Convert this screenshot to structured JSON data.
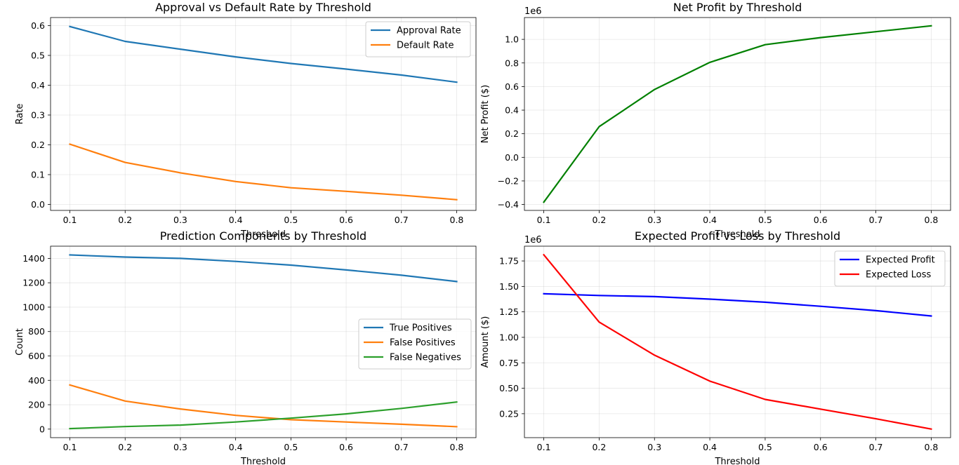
{
  "chart_data": [
    {
      "type": "line",
      "title": "Approval vs Default Rate by Threshold",
      "xlabel": "Threshold",
      "ylabel": "Rate",
      "x": [
        0.1,
        0.2,
        0.3,
        0.4,
        0.5,
        0.6,
        0.7,
        0.8
      ],
      "x_ticks": [
        "0.1",
        "0.2",
        "0.3",
        "0.4",
        "0.5",
        "0.6",
        "0.7",
        "0.8"
      ],
      "y_ticks": [
        "0.0",
        "0.1",
        "0.2",
        "0.3",
        "0.4",
        "0.5",
        "0.6"
      ],
      "xlim": [
        0.065,
        0.835
      ],
      "ylim": [
        -0.02,
        0.627
      ],
      "grid": true,
      "legend": "upper right",
      "series": [
        {
          "name": "Approval Rate",
          "color": "#1f77b4",
          "values": [
            0.597,
            0.547,
            0.521,
            0.495,
            0.473,
            0.454,
            0.434,
            0.41
          ]
        },
        {
          "name": "Default Rate",
          "color": "#ff7f0e",
          "values": [
            0.202,
            0.141,
            0.106,
            0.077,
            0.056,
            0.044,
            0.031,
            0.016
          ]
        }
      ]
    },
    {
      "type": "line",
      "title": "Net Profit by Threshold",
      "xlabel": "Threshold",
      "ylabel": "Net Profit ($)",
      "offset_label": "1e6",
      "x": [
        0.1,
        0.2,
        0.3,
        0.4,
        0.5,
        0.6,
        0.7,
        0.8
      ],
      "x_ticks": [
        "0.1",
        "0.2",
        "0.3",
        "0.4",
        "0.5",
        "0.6",
        "0.7",
        "0.8"
      ],
      "y_ticks": [
        "−0.4",
        "−0.2",
        "0.0",
        "0.2",
        "0.4",
        "0.6",
        "0.8",
        "1.0"
      ],
      "xlim": [
        0.065,
        0.835
      ],
      "ylim": [
        -0.45,
        1.185
      ],
      "grid": true,
      "legend": "none",
      "series": [
        {
          "color": "#008000",
          "values": [
            -0.38,
            0.26,
            0.575,
            0.805,
            0.955,
            1.015,
            1.065,
            1.115
          ]
        }
      ]
    },
    {
      "type": "line",
      "title": "Prediction Components by Threshold",
      "xlabel": "Threshold",
      "ylabel": "Count",
      "x": [
        0.1,
        0.2,
        0.3,
        0.4,
        0.5,
        0.6,
        0.7,
        0.8
      ],
      "x_ticks": [
        "0.1",
        "0.2",
        "0.3",
        "0.4",
        "0.5",
        "0.6",
        "0.7",
        "0.8"
      ],
      "y_ticks": [
        "0",
        "200",
        "400",
        "600",
        "800",
        "1000",
        "1200",
        "1400"
      ],
      "xlim": [
        0.065,
        0.835
      ],
      "ylim": [
        -70,
        1500
      ],
      "grid": true,
      "legend": "center right",
      "series": [
        {
          "name": "True Positives",
          "color": "#1f77b4",
          "values": [
            1428,
            1411,
            1400,
            1375,
            1345,
            1305,
            1262,
            1210
          ]
        },
        {
          "name": "False Positives",
          "color": "#ff7f0e",
          "values": [
            362,
            230,
            165,
            113,
            77,
            58,
            40,
            20
          ]
        },
        {
          "name": "False Negatives",
          "color": "#2ca02c",
          "values": [
            4,
            21,
            33,
            58,
            90,
            125,
            170,
            222
          ]
        }
      ]
    },
    {
      "type": "line",
      "title": "Expected Profit vs Loss by Threshold",
      "xlabel": "Threshold",
      "ylabel": "Amount ($)",
      "offset_label": "1e6",
      "x": [
        0.1,
        0.2,
        0.3,
        0.4,
        0.5,
        0.6,
        0.7,
        0.8
      ],
      "x_ticks": [
        "0.1",
        "0.2",
        "0.3",
        "0.4",
        "0.5",
        "0.6",
        "0.7",
        "0.8"
      ],
      "y_ticks": [
        "0.25",
        "0.50",
        "0.75",
        "1.00",
        "1.25",
        "1.50",
        "1.75"
      ],
      "xlim": [
        0.065,
        0.835
      ],
      "ylim": [
        0.015,
        1.895
      ],
      "grid": true,
      "legend": "upper right",
      "series": [
        {
          "name": "Expected Profit",
          "color": "#0000ff",
          "values": [
            1.428,
            1.411,
            1.4,
            1.375,
            1.345,
            1.305,
            1.262,
            1.21
          ]
        },
        {
          "name": "Expected Loss",
          "color": "#ff0000",
          "values": [
            1.81,
            1.15,
            0.825,
            0.57,
            0.39,
            0.295,
            0.2,
            0.1
          ]
        }
      ]
    }
  ]
}
